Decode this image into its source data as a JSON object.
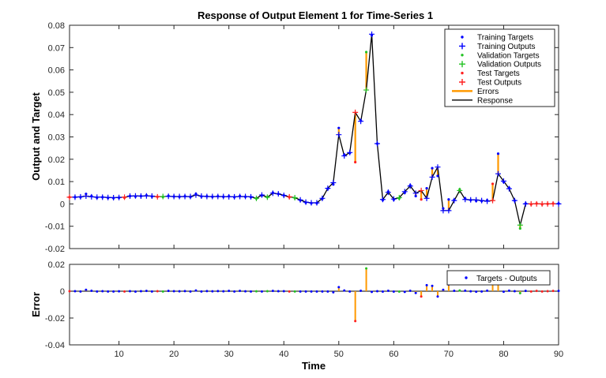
{
  "chart_data": {
    "title": "Response of Output Element 1 for Time-Series 1",
    "xlabel": "Time",
    "xlim": [
      1,
      90
    ],
    "xticks": [
      10,
      20,
      30,
      40,
      50,
      60,
      70,
      80,
      90
    ],
    "colors": {
      "training": "#0000ff",
      "validation": "#22c222",
      "test": "#ff2020",
      "errors": "#ff9900",
      "response": "#000000"
    },
    "panels": [
      {
        "type": "line",
        "ylabel": "Output and Target",
        "ylim": [
          -0.02,
          0.08
        ],
        "yticks": [
          -0.02,
          -0.01,
          0,
          0.01,
          0.02,
          0.03,
          0.04,
          0.05,
          0.06,
          0.07,
          0.08
        ],
        "ytick_labels": [
          "-0.02",
          "-0.01",
          "0",
          "0.01",
          "0.02",
          "0.03",
          "0.04",
          "0.05",
          "0.06",
          "0.07",
          "0.08"
        ],
        "legend": {
          "placement": "top-right",
          "entries": [
            "Training Targets",
            "Training Outputs",
            "Validation Targets",
            "Validation Outputs",
            "Test Targets",
            "Test Outputs",
            "Errors",
            "Response"
          ]
        }
      },
      {
        "type": "stem",
        "ylabel": "Error",
        "ylim": [
          -0.04,
          0.02
        ],
        "yticks": [
          -0.04,
          -0.02,
          0,
          0.02
        ],
        "ytick_labels": [
          "-0.04",
          "-0.02",
          "0",
          "0.02"
        ],
        "legend": {
          "placement": "top-right",
          "entries": [
            "Targets - Outputs"
          ]
        }
      }
    ],
    "x": [
      1,
      2,
      3,
      4,
      5,
      6,
      7,
      8,
      9,
      10,
      11,
      12,
      13,
      14,
      15,
      16,
      17,
      18,
      19,
      20,
      21,
      22,
      23,
      24,
      25,
      26,
      27,
      28,
      29,
      30,
      31,
      32,
      33,
      34,
      35,
      36,
      37,
      38,
      39,
      40,
      41,
      42,
      43,
      44,
      45,
      46,
      47,
      48,
      49,
      50,
      51,
      52,
      53,
      54,
      55,
      56,
      57,
      58,
      59,
      60,
      61,
      62,
      63,
      64,
      65,
      66,
      67,
      68,
      69,
      70,
      71,
      72,
      73,
      74,
      75,
      76,
      77,
      78,
      79,
      80,
      81,
      82,
      83,
      84,
      85,
      86,
      87,
      88,
      89,
      90
    ],
    "set": [
      "Te",
      "Tr",
      "Tr",
      "Tr",
      "Tr",
      "Tr",
      "Tr",
      "Tr",
      "Tr",
      "Tr",
      "Te",
      "Tr",
      "Tr",
      "Tr",
      "Tr",
      "Tr",
      "Te",
      "Va",
      "Tr",
      "Tr",
      "Tr",
      "Tr",
      "Tr",
      "Tr",
      "Tr",
      "Tr",
      "Tr",
      "Tr",
      "Tr",
      "Tr",
      "Tr",
      "Tr",
      "Tr",
      "Tr",
      "Va",
      "Tr",
      "Va",
      "Tr",
      "Tr",
      "Tr",
      "Te",
      "Va",
      "Tr",
      "Tr",
      "Tr",
      "Tr",
      "Tr",
      "Tr",
      "Tr",
      "Tr",
      "Tr",
      "Tr",
      "Te",
      "Tr",
      "Va",
      "Tr",
      "Tr",
      "Tr",
      "Tr",
      "Tr",
      "Va",
      "Tr",
      "Tr",
      "Tr",
      "Te",
      "Tr",
      "Tr",
      "Tr",
      "Tr",
      "Tr",
      "Tr",
      "Va",
      "Tr",
      "Tr",
      "Tr",
      "Tr",
      "Tr",
      "Te",
      "Tr",
      "Tr",
      "Tr",
      "Tr",
      "Va",
      "Tr",
      "Te",
      "Te",
      "Te",
      "Te",
      "Te",
      "Tr"
    ],
    "outputs": [
      0.003,
      0.003,
      0.0032,
      0.0035,
      0.0032,
      0.003,
      0.003,
      0.0029,
      0.0028,
      0.0029,
      0.003,
      0.0035,
      0.0036,
      0.0035,
      0.0036,
      0.0035,
      0.0032,
      0.0033,
      0.0034,
      0.0033,
      0.0033,
      0.0033,
      0.0033,
      0.004,
      0.0035,
      0.0033,
      0.0033,
      0.0033,
      0.0033,
      0.0032,
      0.0032,
      0.0033,
      0.0033,
      0.0032,
      0.0025,
      0.004,
      0.003,
      0.0048,
      0.0045,
      0.0038,
      0.0032,
      0.0028,
      0.0018,
      0.0008,
      0.0005,
      0.0005,
      0.0025,
      0.007,
      0.0095,
      0.031,
      0.0215,
      0.023,
      0.041,
      0.037,
      0.051,
      0.076,
      0.027,
      0.002,
      0.0052,
      0.0022,
      0.0028,
      0.0055,
      0.008,
      0.0048,
      0.006,
      0.0025,
      0.012,
      0.0165,
      -0.003,
      -0.003,
      0.0015,
      0.006,
      0.002,
      0.0018,
      0.0018,
      0.0015,
      0.0012,
      0.0015,
      0.0135,
      0.0102,
      0.0068,
      0.0015,
      -0.0095,
      0.0,
      0.0,
      0.0,
      0.0,
      0.0,
      0.0,
      0.0
    ],
    "targets": [
      0.003,
      0.003,
      0.003,
      0.0045,
      0.0035,
      0.0028,
      0.003,
      0.0027,
      0.0026,
      0.0028,
      0.0028,
      0.0035,
      0.0033,
      0.0035,
      0.0038,
      0.0033,
      0.0032,
      0.0031,
      0.0036,
      0.0033,
      0.0032,
      0.0034,
      0.0031,
      0.0045,
      0.0033,
      0.0034,
      0.0032,
      0.0034,
      0.0032,
      0.0034,
      0.003,
      0.0035,
      0.0032,
      0.003,
      0.0024,
      0.0038,
      0.003,
      0.005,
      0.0045,
      0.0038,
      0.003,
      0.0026,
      0.0016,
      0.0006,
      0.0003,
      0.0003,
      0.0023,
      0.0068,
      0.0087,
      0.034,
      0.022,
      0.0228,
      0.0187,
      0.0373,
      0.068,
      0.0755,
      0.027,
      0.0017,
      0.0055,
      0.0019,
      0.0025,
      0.005,
      0.0083,
      0.0035,
      0.002,
      0.007,
      0.016,
      0.0125,
      -0.002,
      0.002,
      0.0018,
      0.0065,
      0.0024,
      0.0017,
      0.0014,
      0.0013,
      0.0016,
      0.009,
      0.0225,
      0.0098,
      0.0072,
      0.0015,
      -0.011,
      0.0002,
      -0.0002,
      0.0002,
      -0.0002,
      0.0,
      0.0002,
      0.0002
    ]
  }
}
